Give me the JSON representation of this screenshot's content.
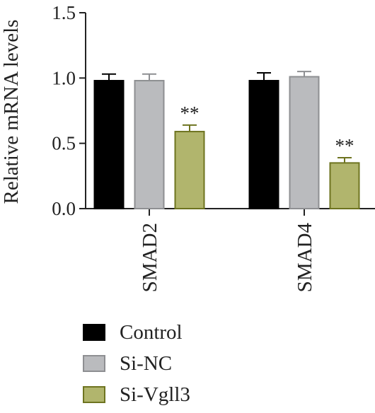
{
  "chart_data": {
    "type": "bar",
    "ylabel": "Relative mRNA levels",
    "xlabel": "",
    "ylim": [
      0,
      1.5
    ],
    "yticks": [
      0.0,
      0.5,
      1.0,
      1.5
    ],
    "ytick_labels": [
      "0.0",
      "0.5",
      "1.0",
      "1.5"
    ],
    "categories": [
      "SMAD2",
      "SMAD4"
    ],
    "series": [
      {
        "name": "Control",
        "values": [
          0.98,
          0.98
        ],
        "errors": [
          0.05,
          0.06
        ],
        "annotations": [
          "",
          ""
        ],
        "color": "#000000",
        "edge": "#000000"
      },
      {
        "name": "Si-NC",
        "values": [
          0.98,
          1.01
        ],
        "errors": [
          0.05,
          0.04
        ],
        "annotations": [
          "",
          ""
        ],
        "color": "#babbbe",
        "edge": "#8e8f92"
      },
      {
        "name": "Si-Vgll3",
        "values": [
          0.59,
          0.35
        ],
        "errors": [
          0.05,
          0.04
        ],
        "annotations": [
          "**",
          "**"
        ],
        "color": "#b1b56d",
        "edge": "#6e7420"
      }
    ],
    "legend_position": "bottom-left",
    "grid": false
  }
}
